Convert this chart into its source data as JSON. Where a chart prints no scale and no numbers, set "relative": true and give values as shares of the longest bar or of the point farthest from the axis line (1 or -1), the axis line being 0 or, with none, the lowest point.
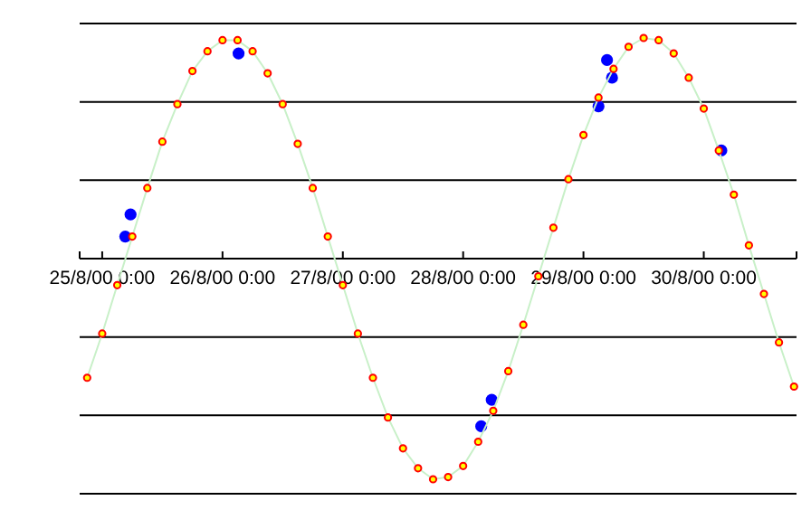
{
  "chart_data": {
    "type": "line",
    "relative": true,
    "grid": "y",
    "x": [
      "2000-08-24T21:00",
      "2000-08-25T00:00",
      "2000-08-25T03:00",
      "2000-08-25T06:00",
      "2000-08-25T09:00",
      "2000-08-25T12:00",
      "2000-08-25T15:00",
      "2000-08-25T18:00",
      "2000-08-25T21:00",
      "2000-08-26T00:00",
      "2000-08-26T03:00",
      "2000-08-26T06:00",
      "2000-08-26T09:00",
      "2000-08-26T12:00",
      "2000-08-26T15:00",
      "2000-08-26T18:00",
      "2000-08-26T21:00",
      "2000-08-27T00:00",
      "2000-08-27T03:00",
      "2000-08-27T06:00",
      "2000-08-27T09:00",
      "2000-08-27T12:00",
      "2000-08-27T15:00",
      "2000-08-27T18:00",
      "2000-08-27T21:00",
      "2000-08-28T00:00",
      "2000-08-28T03:00",
      "2000-08-28T06:00",
      "2000-08-28T09:00",
      "2000-08-28T12:00",
      "2000-08-28T15:00",
      "2000-08-28T18:00",
      "2000-08-28T21:00",
      "2000-08-29T00:00",
      "2000-08-29T03:00",
      "2000-08-29T06:00",
      "2000-08-29T09:00",
      "2000-08-29T12:00",
      "2000-08-29T15:00",
      "2000-08-29T18:00",
      "2000-08-29T21:00",
      "2000-08-30T00:00",
      "2000-08-30T03:00",
      "2000-08-30T06:00",
      "2000-08-30T09:00",
      "2000-08-30T12:00",
      "2000-08-30T15:00",
      "2000-08-30T18:00"
    ],
    "xlim": [
      "2000-08-24T19:30",
      "2000-08-30T18:30"
    ],
    "xticks": [
      {
        "value": "2000-08-25",
        "label": "25/8/00 0:00"
      },
      {
        "value": "2000-08-26",
        "label": "26/8/00 0:00"
      },
      {
        "value": "2000-08-27",
        "label": "27/8/00 0:00"
      },
      {
        "value": "2000-08-28",
        "label": "28/8/00 0:00"
      },
      {
        "value": "2000-08-29",
        "label": "29/8/00 0:00"
      },
      {
        "value": "2000-08-30",
        "label": "30/8/00 0:00"
      }
    ],
    "marker": "circle",
    "series": [
      {
        "color": "#ff0000",
        "values": [
          -0.54,
          -0.34,
          -0.12,
          0.1,
          0.32,
          0.53,
          0.7,
          0.85,
          0.94,
          0.99,
          0.99,
          0.94,
          0.84,
          0.7,
          0.52,
          0.32,
          0.1,
          -0.12,
          -0.34,
          -0.54,
          -0.72,
          -0.86,
          -0.95,
          -1,
          -0.99,
          -0.94,
          -0.83,
          -0.69,
          -0.51,
          -0.3,
          -0.08,
          0.14,
          0.36,
          0.56,
          0.73,
          0.86,
          0.96,
          1,
          0.99,
          0.93,
          0.82,
          0.68,
          0.49,
          0.29,
          0.06,
          -0.16,
          -0.38,
          -0.58
        ]
      },
      {
        "type": "scatter",
        "color": "#0000ff",
        "x": [
          "2000-08-25T04:36",
          "2000-08-25T05:39",
          "2000-08-26T03:12",
          "2000-08-28T03:36",
          "2000-08-28T05:42",
          "2000-08-29T03:00",
          "2000-08-29T04:42",
          "2000-08-29T05:42",
          "2000-08-30T03:30"
        ],
        "values": [
          0.1,
          0.2,
          0.93,
          -0.76,
          -0.64,
          0.69,
          0.9,
          0.82,
          0.49
        ]
      }
    ]
  }
}
